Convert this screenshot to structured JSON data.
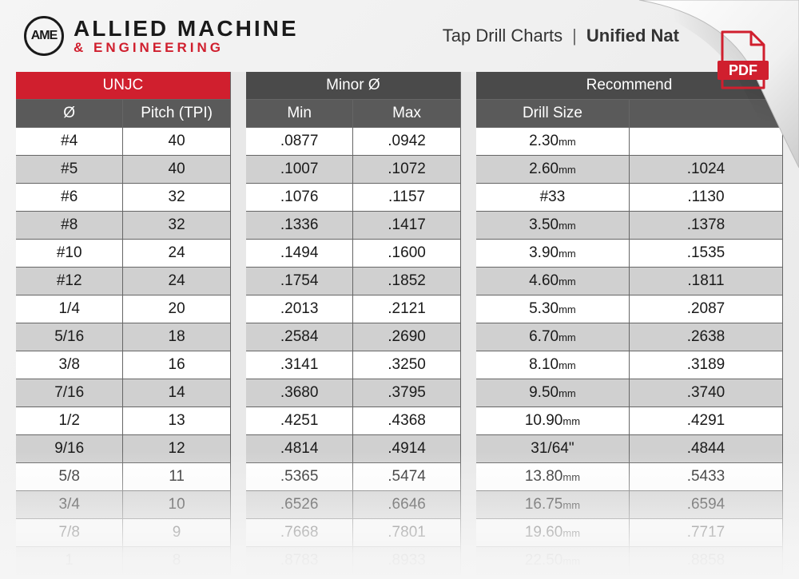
{
  "brand": {
    "logo_mark": "AME",
    "line1": "ALLIED MACHINE",
    "line2": "& ENGINEERING"
  },
  "title": {
    "left": "Tap Drill Charts",
    "right": "Unified Nat"
  },
  "pdf_label": "PDF",
  "table": {
    "header_top": {
      "unjc": "UNJC",
      "minor": "Minor Ø",
      "recommend": "Recommend"
    },
    "header_sub": {
      "dia": "Ø",
      "pitch": "Pitch (TPI)",
      "min": "Min",
      "max": "Max",
      "drill": "Drill Size",
      "extra": ""
    },
    "col_widths_pct": [
      14,
      14,
      2,
      14,
      14,
      2,
      20,
      20
    ],
    "colors": {
      "header_red": "#d01f2e",
      "header_dark": "#4a4a4a",
      "header_mid": "#5a5a5a",
      "row_even": "#ffffff",
      "row_odd": "#d0d0d0",
      "border": "#666666",
      "text": "#1a1a1a"
    },
    "rows": [
      {
        "dia": "#4",
        "pitch": "40",
        "min": ".0877",
        "max": ".0942",
        "drill": "2.30",
        "drill_unit": "mm",
        "extra": ""
      },
      {
        "dia": "#5",
        "pitch": "40",
        "min": ".1007",
        "max": ".1072",
        "drill": "2.60",
        "drill_unit": "mm",
        "extra": ".1024"
      },
      {
        "dia": "#6",
        "pitch": "32",
        "min": ".1076",
        "max": ".1157",
        "drill": "#33",
        "drill_unit": "",
        "extra": ".1130"
      },
      {
        "dia": "#8",
        "pitch": "32",
        "min": ".1336",
        "max": ".1417",
        "drill": "3.50",
        "drill_unit": "mm",
        "extra": ".1378"
      },
      {
        "dia": "#10",
        "pitch": "24",
        "min": ".1494",
        "max": ".1600",
        "drill": "3.90",
        "drill_unit": "mm",
        "extra": ".1535"
      },
      {
        "dia": "#12",
        "pitch": "24",
        "min": ".1754",
        "max": ".1852",
        "drill": "4.60",
        "drill_unit": "mm",
        "extra": ".1811"
      },
      {
        "dia": "1/4",
        "pitch": "20",
        "min": ".2013",
        "max": ".2121",
        "drill": "5.30",
        "drill_unit": "mm",
        "extra": ".2087"
      },
      {
        "dia": "5/16",
        "pitch": "18",
        "min": ".2584",
        "max": ".2690",
        "drill": "6.70",
        "drill_unit": "mm",
        "extra": ".2638"
      },
      {
        "dia": "3/8",
        "pitch": "16",
        "min": ".3141",
        "max": ".3250",
        "drill": "8.10",
        "drill_unit": "mm",
        "extra": ".3189"
      },
      {
        "dia": "7/16",
        "pitch": "14",
        "min": ".3680",
        "max": ".3795",
        "drill": "9.50",
        "drill_unit": "mm",
        "extra": ".3740"
      },
      {
        "dia": "1/2",
        "pitch": "13",
        "min": ".4251",
        "max": ".4368",
        "drill": "10.90",
        "drill_unit": "mm",
        "extra": ".4291"
      },
      {
        "dia": "9/16",
        "pitch": "12",
        "min": ".4814",
        "max": ".4914",
        "drill": "31/64",
        "drill_unit": "\"",
        "extra": ".4844"
      },
      {
        "dia": "5/8",
        "pitch": "11",
        "min": ".5365",
        "max": ".5474",
        "drill": "13.80",
        "drill_unit": "mm",
        "extra": ".5433"
      },
      {
        "dia": "3/4",
        "pitch": "10",
        "min": ".6526",
        "max": ".6646",
        "drill": "16.75",
        "drill_unit": "mm",
        "extra": ".6594"
      },
      {
        "dia": "7/8",
        "pitch": "9",
        "min": ".7668",
        "max": ".7801",
        "drill": "19.60",
        "drill_unit": "mm",
        "extra": ".7717"
      },
      {
        "dia": "1",
        "pitch": "8",
        "min": ".8783",
        "max": ".8933",
        "drill": "22.50",
        "drill_unit": "mm",
        "extra": ".8858"
      }
    ]
  }
}
